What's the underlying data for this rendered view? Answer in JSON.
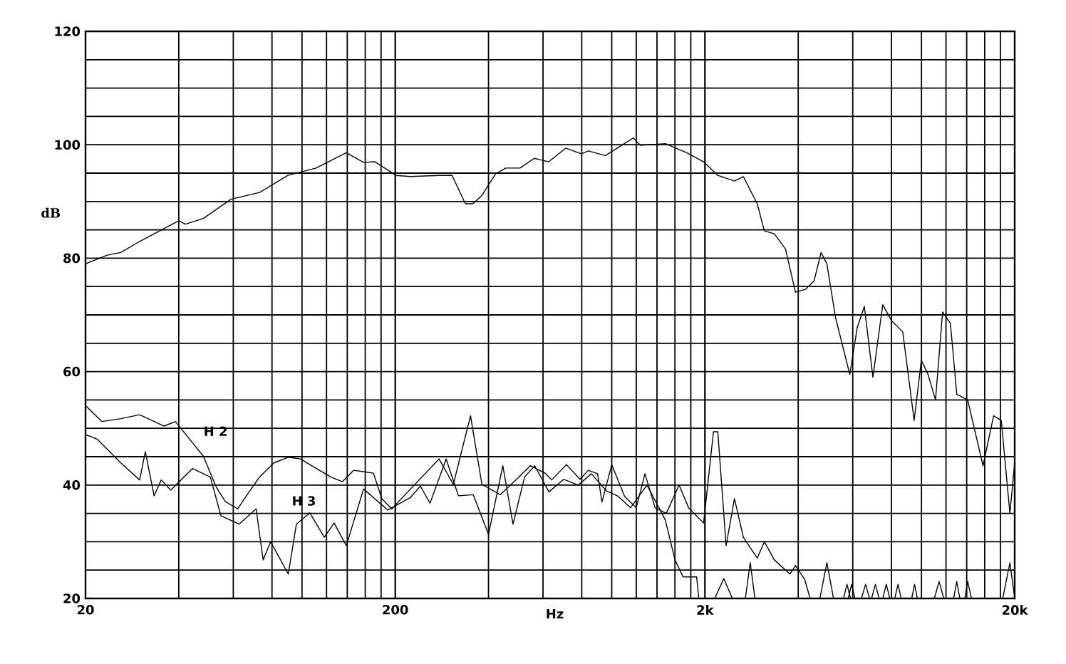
{
  "chart_data": {
    "type": "line",
    "xlabel": "Hz",
    "ylabel": "dB",
    "log": "x",
    "grid": true,
    "xlim": [
      20,
      20000
    ],
    "ylim": [
      20,
      120
    ],
    "xticks": [
      {
        "value": 20,
        "label": "20"
      },
      {
        "value": 200,
        "label": "200"
      },
      {
        "value": 2000,
        "label": "2k"
      },
      {
        "value": 20000,
        "label": "20k"
      }
    ],
    "yticks": [
      20,
      40,
      60,
      80,
      100,
      120
    ],
    "series": [
      {
        "color": "#000000",
        "x": [
          20,
          23.4,
          26,
          30,
          40,
          42,
          48,
          59,
          73,
          90,
          111,
          139,
          158,
          172,
          201,
          224,
          277,
          305,
          337,
          356,
          380,
          422,
          455,
          506,
          562,
          626,
          710,
          798,
          840,
          954,
          1174,
          1237,
          1490,
          1745,
          1980,
          2200,
          2490,
          2660,
          2950,
          3110,
          3350,
          3640,
          3920,
          4220,
          4500,
          4740,
          4950,
          5280,
          5870,
          6200,
          6540,
          6970,
          7500,
          8000,
          8700,
          9470,
          9990,
          10500,
          11100,
          11700,
          12400,
          13000,
          14100,
          15800,
          17100,
          18100,
          19300,
          20000
        ],
        "values": [
          79,
          80.5,
          81,
          83,
          86.6,
          86,
          87,
          90.4,
          91.6,
          94.6,
          95.9,
          98.6,
          96.9,
          97,
          94.6,
          94.4,
          94.6,
          94.6,
          89.6,
          89.6,
          91,
          94.9,
          95.9,
          95.9,
          97.6,
          97,
          99.4,
          98.4,
          98.9,
          98.1,
          101.2,
          99.9,
          100.2,
          98.6,
          97,
          94.6,
          93.6,
          94.4,
          89.6,
          84.8,
          84.3,
          81.6,
          74,
          74.5,
          76,
          81,
          79,
          69.5,
          59.5,
          67.7,
          71.5,
          59,
          71.8,
          69,
          67,
          51.4,
          62,
          59.5,
          55,
          70.5,
          68.5,
          56,
          55,
          43.4,
          52.2,
          51.4,
          35,
          44
        ]
      },
      {
        "name": "H 2",
        "color": "#000000",
        "x": [
          20,
          22.6,
          26,
          29.9,
          35.9,
          39,
          42.9,
          48,
          52.9,
          56.5,
          62,
          67.5,
          72.9,
          81.1,
          90.3,
          98.8,
          106,
          124,
          135,
          147,
          170,
          181,
          195,
          224,
          277,
          308,
          350,
          381,
          437,
          490,
          546,
          609,
          640,
          714,
          790,
          840,
          900,
          930,
          1000,
          1100,
          1200,
          1280,
          1380,
          1500,
          1650,
          1770,
          1980,
          2130,
          2200,
          2340,
          2490,
          2660,
          2950,
          3110,
          3350,
          3760,
          3920,
          4200,
          4370,
          5600,
          5750,
          5900,
          6400,
          6600,
          6800,
          7500,
          7700,
          7900,
          9300,
          9500,
          9700,
          12700,
          13000,
          13300,
          18300,
          19300,
          20000
        ],
        "values": [
          54,
          51.2,
          51.7,
          52.4,
          50.4,
          51.2,
          48.4,
          45.1,
          39.6,
          37.1,
          35.8,
          38.8,
          41.4,
          43.9,
          44.9,
          44.6,
          43.6,
          41.4,
          40.6,
          42.6,
          42.1,
          37.6,
          35.8,
          39.3,
          44.6,
          40.1,
          52.2,
          40.1,
          38.3,
          40.9,
          43.4,
          42.1,
          40.9,
          43.6,
          41,
          42.6,
          42,
          37,
          43.6,
          38,
          36,
          42,
          36,
          35,
          40,
          36,
          33.3,
          49.4,
          49.4,
          29.3,
          37.6,
          30.8,
          27.1,
          30,
          26.8,
          24.3,
          25.8,
          23.3,
          20,
          20,
          22.5,
          20,
          20,
          22.5,
          20,
          20,
          22.5,
          20,
          20,
          22.5,
          20,
          20,
          23,
          20,
          20,
          26.3,
          20
        ]
      },
      {
        "name": "H 3",
        "color": "#000000",
        "x": [
          20,
          21.8,
          26,
          29.9,
          31.2,
          33.3,
          35.1,
          37.7,
          44.3,
          50.6,
          54.7,
          62.6,
          71.1,
          74.9,
          79.2,
          90.3,
          95.9,
          106,
          118,
          127,
          139,
          158,
          189,
          224,
          241,
          259,
          292,
          320,
          357,
          400,
          445,
          480,
          523,
          564,
          627,
          700,
          780,
          860,
          960,
          1050,
          1150,
          1300,
          1490,
          1600,
          1700,
          1880,
          1910,
          2150,
          2300,
          2450,
          2700,
          2800,
          2900,
          4700,
          4950,
          5200,
          5800,
          5950,
          6100,
          6900,
          7100,
          7300,
          8200,
          8400,
          8600,
          11000,
          11400,
          11800,
          13800,
          14100,
          14500,
          20000
        ],
        "values": [
          48.9,
          48.1,
          43.9,
          40.9,
          45.9,
          38.1,
          40.9,
          39.1,
          42.9,
          41.4,
          34.6,
          33.1,
          35.8,
          26.8,
          30,
          24.3,
          33.1,
          35.1,
          30.8,
          33.3,
          29.3,
          39.3,
          35.6,
          37.8,
          39.8,
          36.8,
          44.6,
          38.1,
          38.3,
          31.3,
          43.4,
          33.1,
          41.4,
          43.4,
          38.8,
          41,
          40,
          42,
          39,
          38,
          36,
          40,
          33.8,
          26.8,
          23.8,
          23.8,
          20,
          20,
          23.5,
          20,
          20,
          26.3,
          20,
          20,
          26.3,
          20,
          20,
          22.5,
          20,
          20,
          22.5,
          20,
          20,
          22.5,
          20,
          20,
          23,
          20,
          20,
          23,
          20,
          20
        ]
      }
    ]
  }
}
